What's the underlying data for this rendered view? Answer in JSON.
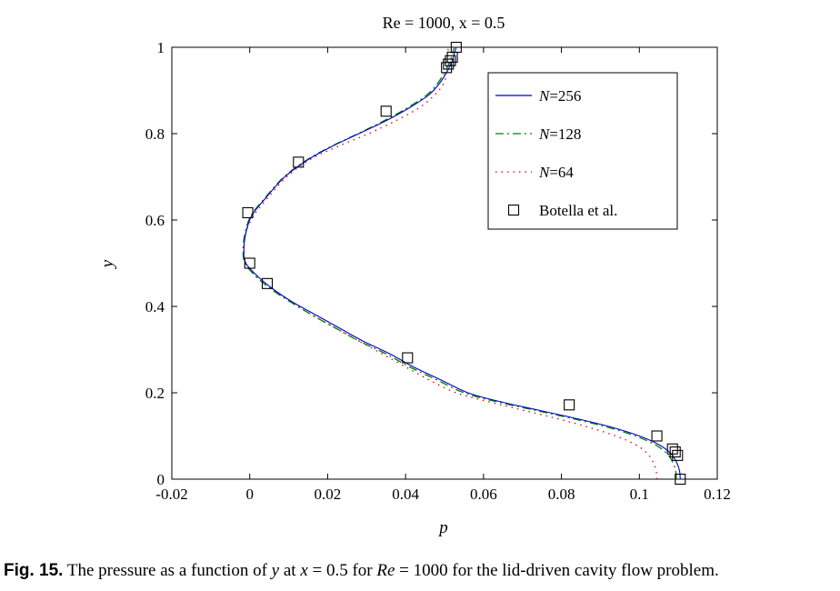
{
  "chart_data": {
    "type": "line",
    "title": "Re = 1000, x = 0.5",
    "xlabel": "p",
    "ylabel": "y",
    "xlim": [
      -0.02,
      0.12
    ],
    "ylim": [
      0,
      1
    ],
    "xticks": [
      "-0.02",
      "0",
      "0.02",
      "0.04",
      "0.06",
      "0.08",
      "0.1",
      "0.12"
    ],
    "yticks": [
      "0",
      "0.2",
      "0.4",
      "0.6",
      "0.8",
      "1"
    ],
    "grid": false,
    "legend_position": "top-right",
    "series": [
      {
        "name": "N=256",
        "name_italic": "N",
        "name_rest": "=256",
        "color": "#0000cc",
        "style": "solid",
        "points": [
          [
            0.1105,
            0
          ],
          [
            0.1103,
            0.02
          ],
          [
            0.1095,
            0.04
          ],
          [
            0.108,
            0.06
          ],
          [
            0.105,
            0.08
          ],
          [
            0.1,
            0.1
          ],
          [
            0.093,
            0.12
          ],
          [
            0.084,
            0.14
          ],
          [
            0.074,
            0.16
          ],
          [
            0.064,
            0.18
          ],
          [
            0.056,
            0.2
          ],
          [
            0.049,
            0.23
          ],
          [
            0.042,
            0.26
          ],
          [
            0.036,
            0.29
          ],
          [
            0.029,
            0.32
          ],
          [
            0.023,
            0.35
          ],
          [
            0.017,
            0.38
          ],
          [
            0.011,
            0.41
          ],
          [
            0.006,
            0.44
          ],
          [
            0.002,
            0.47
          ],
          [
            -0.001,
            0.5
          ],
          [
            -0.0015,
            0.53
          ],
          [
            -0.001,
            0.57
          ],
          [
            0.0005,
            0.61
          ],
          [
            0.004,
            0.65
          ],
          [
            0.009,
            0.7
          ],
          [
            0.015,
            0.74
          ],
          [
            0.021,
            0.77
          ],
          [
            0.028,
            0.8
          ],
          [
            0.035,
            0.83
          ],
          [
            0.041,
            0.86
          ],
          [
            0.046,
            0.89
          ],
          [
            0.049,
            0.92
          ],
          [
            0.051,
            0.95
          ],
          [
            0.052,
            0.97
          ],
          [
            0.0525,
            0.985
          ],
          [
            0.053,
            1.0
          ]
        ]
      },
      {
        "name": "N=128",
        "name_italic": "N",
        "name_rest": "=128",
        "color": "#008000",
        "style": "dashdot",
        "points": [
          [
            0.1095,
            0
          ],
          [
            0.1093,
            0.02
          ],
          [
            0.1085,
            0.04
          ],
          [
            0.107,
            0.06
          ],
          [
            0.104,
            0.08
          ],
          [
            0.099,
            0.1
          ],
          [
            0.092,
            0.12
          ],
          [
            0.083,
            0.14
          ],
          [
            0.073,
            0.16
          ],
          [
            0.063,
            0.18
          ],
          [
            0.055,
            0.2
          ],
          [
            0.048,
            0.23
          ],
          [
            0.041,
            0.26
          ],
          [
            0.035,
            0.29
          ],
          [
            0.028,
            0.32
          ],
          [
            0.022,
            0.35
          ],
          [
            0.016,
            0.38
          ],
          [
            0.0105,
            0.41
          ],
          [
            0.0055,
            0.44
          ],
          [
            0.0015,
            0.47
          ],
          [
            -0.0012,
            0.5
          ],
          [
            -0.0017,
            0.53
          ],
          [
            -0.0012,
            0.57
          ],
          [
            0.0003,
            0.61
          ],
          [
            0.0038,
            0.65
          ],
          [
            0.0088,
            0.7
          ],
          [
            0.0148,
            0.74
          ],
          [
            0.0208,
            0.77
          ],
          [
            0.0278,
            0.8
          ],
          [
            0.0345,
            0.83
          ],
          [
            0.0405,
            0.86
          ],
          [
            0.0455,
            0.89
          ],
          [
            0.0485,
            0.92
          ],
          [
            0.0505,
            0.95
          ],
          [
            0.0515,
            0.97
          ],
          [
            0.052,
            0.985
          ],
          [
            0.0525,
            1.0
          ]
        ]
      },
      {
        "name": "N=64",
        "name_italic": "N",
        "name_rest": "=64",
        "color": "#dd0000",
        "style": "dotted",
        "points": [
          [
            0.1045,
            0
          ],
          [
            0.1043,
            0.02
          ],
          [
            0.1035,
            0.04
          ],
          [
            0.102,
            0.06
          ],
          [
            0.099,
            0.08
          ],
          [
            0.094,
            0.1
          ],
          [
            0.087,
            0.12
          ],
          [
            0.079,
            0.14
          ],
          [
            0.07,
            0.16
          ],
          [
            0.061,
            0.18
          ],
          [
            0.053,
            0.2
          ],
          [
            0.046,
            0.23
          ],
          [
            0.04,
            0.26
          ],
          [
            0.034,
            0.29
          ],
          [
            0.028,
            0.32
          ],
          [
            0.022,
            0.35
          ],
          [
            0.016,
            0.38
          ],
          [
            0.0105,
            0.41
          ],
          [
            0.0055,
            0.44
          ],
          [
            0.0015,
            0.47
          ],
          [
            -0.001,
            0.5
          ],
          [
            -0.0015,
            0.53
          ],
          [
            -0.001,
            0.57
          ],
          [
            0.001,
            0.61
          ],
          [
            0.0045,
            0.65
          ],
          [
            0.0095,
            0.7
          ],
          [
            0.0155,
            0.74
          ],
          [
            0.0225,
            0.77
          ],
          [
            0.0305,
            0.8
          ],
          [
            0.0375,
            0.83
          ],
          [
            0.0435,
            0.86
          ],
          [
            0.0475,
            0.89
          ],
          [
            0.05,
            0.92
          ],
          [
            0.0505,
            0.95
          ],
          [
            0.0507,
            0.97
          ],
          [
            0.0508,
            0.985
          ],
          [
            0.051,
            1.0
          ]
        ]
      },
      {
        "name": "Botella et al.",
        "color": "#000000",
        "style": "markers",
        "marker": "square",
        "points": [
          [
            0.1105,
            0
          ],
          [
            0.1098,
            0.055
          ],
          [
            0.1092,
            0.063
          ],
          [
            0.1085,
            0.07
          ],
          [
            0.1045,
            0.1
          ],
          [
            0.082,
            0.172
          ],
          [
            0.0405,
            0.281
          ],
          [
            0.0045,
            0.453
          ],
          [
            0.0,
            0.5
          ],
          [
            -0.0005,
            0.617
          ],
          [
            0.0125,
            0.734
          ],
          [
            0.035,
            0.852
          ],
          [
            0.0505,
            0.953
          ],
          [
            0.051,
            0.961
          ],
          [
            0.0515,
            0.969
          ],
          [
            0.052,
            0.977
          ],
          [
            0.053,
            1.0
          ]
        ]
      }
    ]
  },
  "caption": {
    "label": "Fig. 15.",
    "t1": "The pressure as a function of ",
    "v1": "y",
    "t2": " at ",
    "v2": "x",
    "t3": " = 0.5 for ",
    "v3": "Re",
    "t4": " = 1000 for the lid-driven cavity flow problem."
  }
}
